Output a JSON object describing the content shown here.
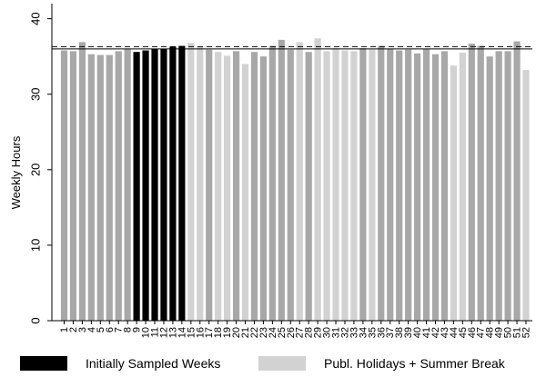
{
  "chart_data": {
    "type": "bar",
    "ylabel": "Weekly Hours",
    "xlabel": "",
    "ylim": [
      0,
      42
    ],
    "yticks": [
      0,
      10,
      20,
      30,
      40
    ],
    "grid": false,
    "reference_lines": [
      {
        "style": "solid",
        "y": 36.0
      },
      {
        "style": "dashed",
        "y": 36.3
      }
    ],
    "categories": [
      "1",
      "2",
      "3",
      "4",
      "5",
      "6",
      "7",
      "8",
      "9",
      "10",
      "11",
      "12",
      "13",
      "14",
      "15",
      "16",
      "17",
      "18",
      "19",
      "20",
      "21",
      "22",
      "23",
      "24",
      "25",
      "26",
      "27",
      "28",
      "29",
      "30",
      "31",
      "32",
      "33",
      "34",
      "35",
      "36",
      "37",
      "38",
      "39",
      "40",
      "41",
      "42",
      "43",
      "44",
      "45",
      "46",
      "47",
      "48",
      "49",
      "50",
      "51",
      "52"
    ],
    "values": [
      35.8,
      35.7,
      36.9,
      35.3,
      35.2,
      35.2,
      35.7,
      36.0,
      35.6,
      35.8,
      36.0,
      36.0,
      36.3,
      36.4,
      36.8,
      36.3,
      35.9,
      35.6,
      35.1,
      35.7,
      34.0,
      35.6,
      35.0,
      36.4,
      37.2,
      35.9,
      36.9,
      35.6,
      37.4,
      35.7,
      36.1,
      35.8,
      35.7,
      36.1,
      35.9,
      36.4,
      36.0,
      35.8,
      35.9,
      35.4,
      36.0,
      35.3,
      35.7,
      33.8,
      35.5,
      36.7,
      36.4,
      35.0,
      35.7,
      35.7,
      37.0,
      33.2
    ],
    "groups": [
      "regular",
      "regular",
      "regular",
      "regular",
      "regular",
      "regular",
      "regular",
      "regular",
      "sampled",
      "sampled",
      "sampled",
      "sampled",
      "sampled",
      "sampled",
      "holiday",
      "holiday",
      "regular",
      "holiday",
      "holiday",
      "regular",
      "holiday",
      "regular",
      "regular",
      "regular",
      "regular",
      "regular",
      "holiday",
      "regular",
      "holiday",
      "holiday",
      "holiday",
      "holiday",
      "holiday",
      "regular",
      "holiday",
      "regular",
      "regular",
      "regular",
      "regular",
      "regular",
      "regular",
      "regular",
      "regular",
      "holiday",
      "holiday",
      "regular",
      "regular",
      "regular",
      "regular",
      "regular",
      "regular",
      "holiday"
    ],
    "legend": [
      {
        "group": "sampled",
        "label": "Initially Sampled Weeks"
      },
      {
        "group": "holiday",
        "label": "Publ. Holidays + Summer Break"
      }
    ],
    "legend_position": "bottom",
    "colors": {
      "sampled": "#000000",
      "holiday": "#d2d2d2",
      "regular": "#a8a8a8",
      "axis": "#000000"
    }
  }
}
